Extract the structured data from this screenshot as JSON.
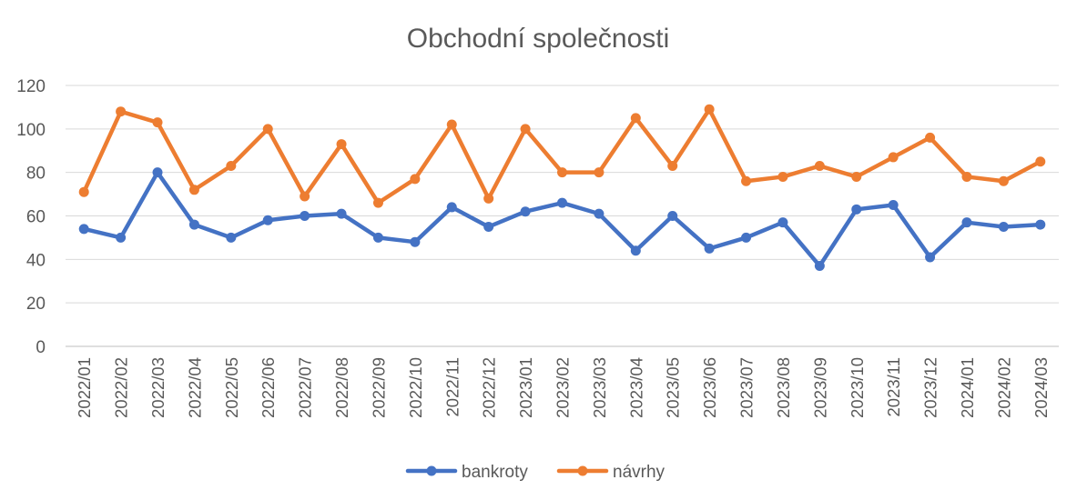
{
  "chart_data": {
    "type": "line",
    "title": "Obchodní společnosti",
    "xlabel": "",
    "ylabel": "",
    "ylim": [
      0,
      120
    ],
    "yticks": [
      0,
      20,
      40,
      60,
      80,
      100,
      120
    ],
    "grid": true,
    "legend_position": "bottom",
    "categories": [
      "2022/01",
      "2022/02",
      "2022/03",
      "2022/04",
      "2022/05",
      "2022/06",
      "2022/07",
      "2022/08",
      "2022/09",
      "2022/10",
      "2022/11",
      "2022/12",
      "2023/01",
      "2023/02",
      "2023/03",
      "2023/04",
      "2023/05",
      "2023/06",
      "2023/07",
      "2023/08",
      "2023/09",
      "2023/10",
      "2023/11",
      "2023/12",
      "2024/01",
      "2024/02",
      "2024/03"
    ],
    "series": [
      {
        "name": "bankroty",
        "color": "#4472C4",
        "values": [
          54,
          50,
          80,
          56,
          50,
          58,
          60,
          61,
          50,
          48,
          64,
          55,
          62,
          66,
          61,
          44,
          60,
          45,
          50,
          57,
          37,
          63,
          65,
          41,
          57,
          55,
          56
        ]
      },
      {
        "name": "návrhy",
        "color": "#ED7D31",
        "values": [
          71,
          108,
          103,
          72,
          83,
          100,
          69,
          93,
          66,
          77,
          102,
          68,
          100,
          80,
          80,
          105,
          83,
          109,
          76,
          78,
          83,
          78,
          87,
          96,
          78,
          76,
          85
        ]
      }
    ]
  }
}
